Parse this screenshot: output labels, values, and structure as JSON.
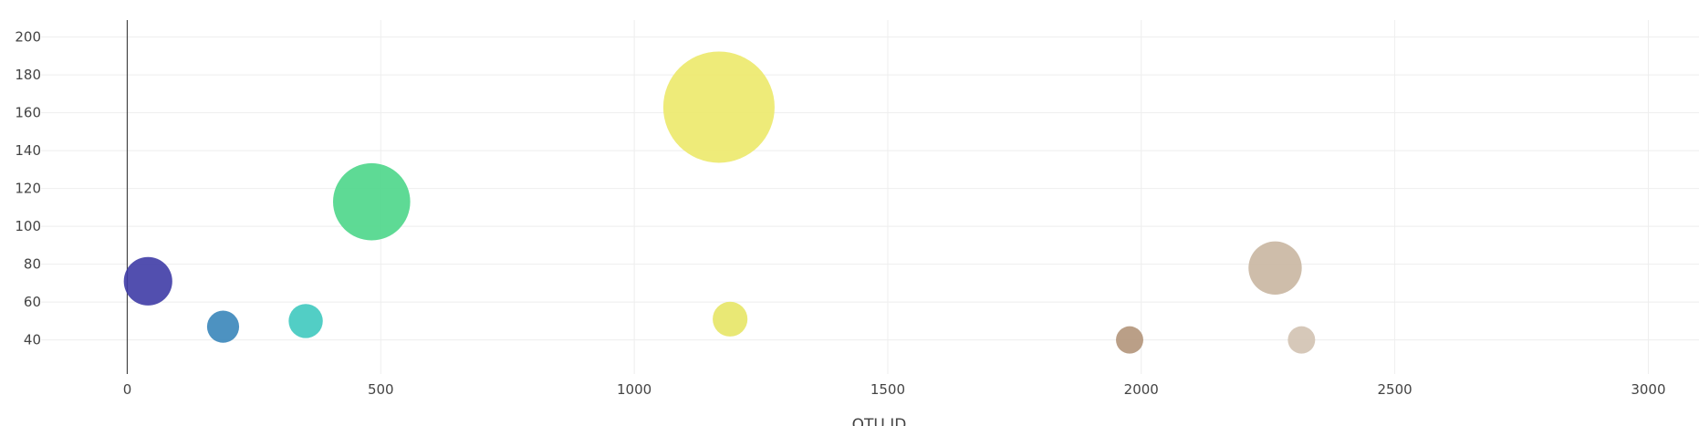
{
  "chart_data": {
    "type": "scatter",
    "subtype": "bubble",
    "xlabel": "OTU ID",
    "ylabel": "",
    "xlim": [
      -170,
      3100
    ],
    "ylim": [
      22,
      209
    ],
    "xticks": [
      0,
      500,
      1000,
      1500,
      2000,
      2500,
      3000
    ],
    "yticks": [
      40,
      60,
      80,
      100,
      120,
      140,
      160,
      180,
      200
    ],
    "grid": true,
    "legend": "none",
    "points": [
      {
        "x": 41,
        "y": 71,
        "size": 71,
        "color": "#3f3ca6"
      },
      {
        "x": 189,
        "y": 47,
        "size": 47,
        "color": "#3a86ba"
      },
      {
        "x": 352,
        "y": 50,
        "size": 50,
        "color": "#3fc9bf"
      },
      {
        "x": 482,
        "y": 113,
        "size": 113,
        "color": "#4dd68a"
      },
      {
        "x": 1167,
        "y": 163,
        "size": 163,
        "color": "#ece96a"
      },
      {
        "x": 1189,
        "y": 51,
        "size": 51,
        "color": "#e7e666"
      },
      {
        "x": 1977,
        "y": 40,
        "size": 40,
        "color": "#b3957a"
      },
      {
        "x": 2264,
        "y": 78,
        "size": 78,
        "color": "#c9b6a1"
      },
      {
        "x": 2316,
        "y": 40,
        "size": 40,
        "color": "#d1c2b1"
      }
    ]
  }
}
